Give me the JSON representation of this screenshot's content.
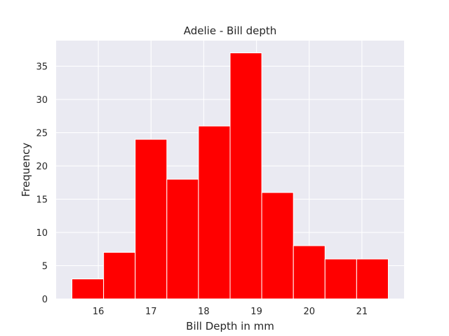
{
  "chart_data": {
    "type": "bar",
    "subtype": "histogram",
    "title": "Adelie - Bill depth",
    "xlabel": "Bill Depth in mm",
    "ylabel": "Frequency",
    "bins": [
      {
        "start": 15.5,
        "end": 16.1,
        "value": 3
      },
      {
        "start": 16.1,
        "end": 16.7,
        "value": 7
      },
      {
        "start": 16.7,
        "end": 17.3,
        "value": 24
      },
      {
        "start": 17.3,
        "end": 17.9,
        "value": 18
      },
      {
        "start": 17.9,
        "end": 18.5,
        "value": 26
      },
      {
        "start": 18.5,
        "end": 19.1,
        "value": 37
      },
      {
        "start": 19.1,
        "end": 19.7,
        "value": 16
      },
      {
        "start": 19.7,
        "end": 20.3,
        "value": 8
      },
      {
        "start": 20.3,
        "end": 20.9,
        "value": 6
      },
      {
        "start": 20.9,
        "end": 21.5,
        "value": 6
      }
    ],
    "xlim": [
      15.2,
      21.8
    ],
    "ylim": [
      0,
      38.85
    ],
    "xticks": [
      16,
      17,
      18,
      19,
      20,
      21
    ],
    "yticks": [
      0,
      5,
      10,
      15,
      20,
      25,
      30,
      35
    ],
    "grid": true,
    "colors": {
      "bar": "#ff0000",
      "bar_edge": "#ffffff",
      "plot_background": "#eaeaf2",
      "grid": "#ffffff",
      "text": "#262626"
    }
  }
}
